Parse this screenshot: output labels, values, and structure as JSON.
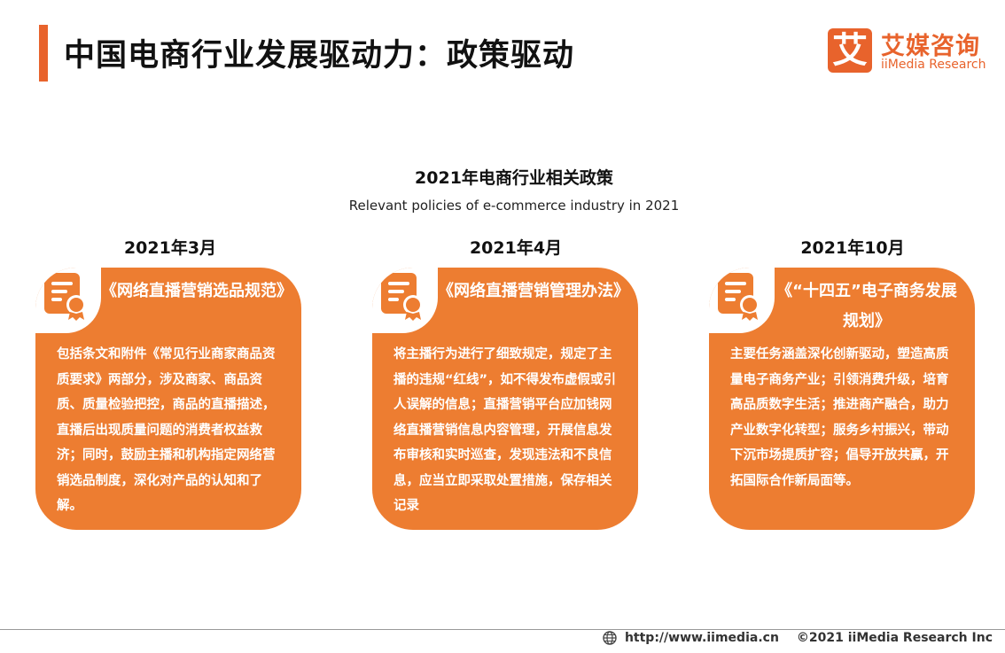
{
  "header": {
    "title": "中国电商行业发展驱动力：政策驱动",
    "logo_cn": "艾媒咨询",
    "logo_en": "iiMedia Research",
    "logo_mark": "艾"
  },
  "section": {
    "title": "2021年电商行业相关政策",
    "subtitle": "Relevant policies of e-commerce industry in 2021"
  },
  "policies": [
    {
      "date": "2021年3月",
      "title": "《网络直播营销选品规范》",
      "body": "包括条文和附件《常见行业商家商品资质要求》两部分，涉及商家、商品资质、质量检验把控，商品的直播描述，直播后出现质量问题的消费者权益救济；同时，鼓励主播和机构指定网络营销选品制度，深化对产品的认知和了解。"
    },
    {
      "date": "2021年4月",
      "title": "《网络直播营销管理办法》",
      "body": "将主播行为进行了细致规定，规定了主播的违规“红线”，如不得发布虚假或引人误解的信息；直播营销平台应加钱网络直播营销信息内容管理，开展信息发布审核和实时巡查，发现违法和不良信息，应当立即采取处置措施，保存相关记录"
    },
    {
      "date": "2021年10月",
      "title": "《“十四五”电子商务发展规划》",
      "body": "主要任务涵盖深化创新驱动，塑造高质量电子商务产业；引领消费升级，培育高品质数字生活；推进商产融合，助力产业数字化转型；服务乡村振兴，带动下沉市场提质扩容；倡导开放共赢，开拓国际合作新局面等。"
    }
  ],
  "footer": {
    "url": "http://www.iimedia.cn",
    "copyright": "©2021  iiMedia Research  Inc"
  },
  "colors": {
    "accent": "#e8632c",
    "card": "#ed7d31"
  },
  "icons": {
    "card_icon": "certificate-icon",
    "footer_icon": "globe-icon"
  }
}
